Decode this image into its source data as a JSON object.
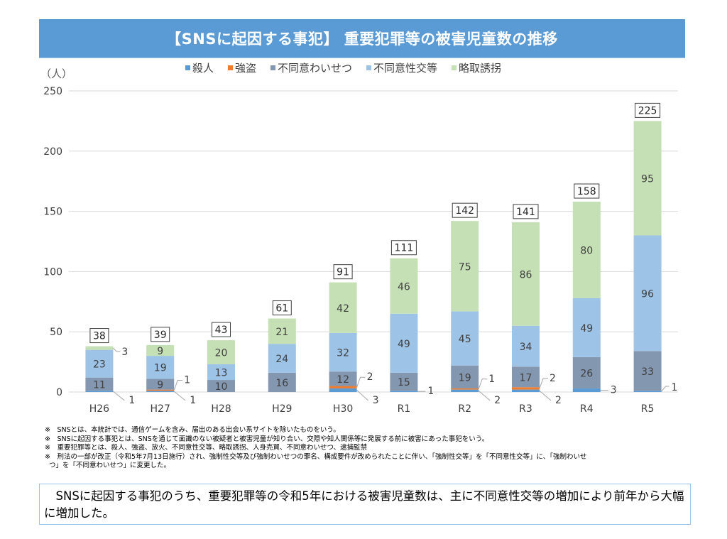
{
  "title": "【SNSに起因する事犯】 重要犯罪等の被害児童数の推移",
  "chart_data": {
    "type": "bar",
    "stacked": true,
    "title": "【SNSに起因する事犯】 重要犯罪等の被害児童数の推移",
    "ylabel": "（人）",
    "xlabel": "",
    "ylim": [
      0,
      250
    ],
    "yticks": [
      0,
      50,
      100,
      150,
      200,
      250
    ],
    "grid": true,
    "legend_position": "top-center",
    "categories": [
      "H26",
      "H27",
      "H28",
      "H29",
      "H30",
      "R1",
      "R2",
      "R3",
      "R4",
      "R5"
    ],
    "series": [
      {
        "name": "殺人",
        "color": "#5B9BD5",
        "values": [
          1,
          1,
          0,
          0,
          3,
          1,
          2,
          2,
          3,
          1
        ]
      },
      {
        "name": "強盗",
        "color": "#ED7D31",
        "values": [
          0,
          1,
          0,
          0,
          2,
          0,
          1,
          2,
          0,
          0
        ]
      },
      {
        "name": "不同意わいせつ",
        "color": "#8497B0",
        "values": [
          11,
          9,
          10,
          16,
          12,
          15,
          19,
          17,
          26,
          33
        ]
      },
      {
        "name": "不同意性交等",
        "color": "#9DC3E6",
        "values": [
          23,
          19,
          13,
          24,
          32,
          49,
          45,
          34,
          49,
          96
        ]
      },
      {
        "name": "略取誘拐",
        "color": "#C5E0B4",
        "values": [
          3,
          9,
          20,
          21,
          42,
          46,
          75,
          86,
          80,
          95
        ]
      }
    ],
    "totals": [
      38,
      39,
      43,
      61,
      91,
      111,
      142,
      141,
      158,
      225
    ]
  },
  "footnotes": [
    "※　SNSとは、本統計では、通信ゲームを含み、届出のある出会い系サイトを除いたものをいう。",
    "※　SNSに起因する事犯とは、SNSを通じて面識のない被疑者と被害児童が知り合い、交際や知人関係等に発展する前に被害にあった事犯をいう。",
    "※　重要犯罪等とは、殺人、強盗、放火、不同意性交等、略取誘拐、人身売買、不同意わいせつ、逮捕監禁",
    "※　刑法の一部が改正（令和5年7月13日施行）され、強制性交等及び強制わいせつの罪名、構成要件が改められたことに伴い、「強制性交等」を「不同意性交等」に、「強制わいせ",
    "つ」を「不同意わいせつ」に変更した。"
  ],
  "summary": "SNSに起因する事犯のうち、重要犯罪等の令和5年における被害児童数は、主に不同意性交等の増加により前年から大幅に増加した。"
}
